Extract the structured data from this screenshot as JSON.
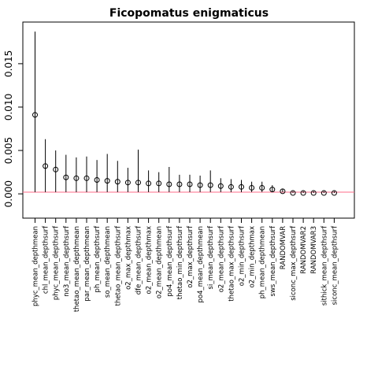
{
  "chart_data": {
    "type": "scatter",
    "title": "Ficopomatus enigmaticus",
    "xlabel": "",
    "ylabel": "",
    "ylim": [
      -0.0028,
      0.0198
    ],
    "yticks": [
      0.0,
      0.005,
      0.01,
      0.015
    ],
    "ytick_labels": [
      "0.000",
      "0.005",
      "0.010",
      "0.015"
    ],
    "reference_line": {
      "y": 0.0002,
      "color": "#ff6b8a"
    },
    "grid": false,
    "categories": [
      "phyc_mean_depthmean",
      "chl_mean_depthsurf",
      "phyc_mean_depthsurf",
      "no3_mean_depthsurf",
      "thetao_mean_depthmean",
      "par_mean_depthmean",
      "ph_mean_depthsurf",
      "so_mean_depthmean",
      "thetao_mean_depthsurf",
      "o2_max_depthmax",
      "dfe_mean_depthsurf",
      "o2_mean_depthmax",
      "o2_mean_depthmean",
      "po4_mean_depthsurf",
      "thetao_min_depthsurf",
      "o2_max_depthsurf",
      "po4_mean_depthmean",
      "si_mean_depthsurf",
      "o2_mean_depthsurf",
      "thetao_max_depthsurf",
      "o2_min_depthsurf",
      "o2_min_depthmax",
      "ph_mean_depthmean",
      "sws_mean_depthsurf",
      "RANDOMVAR",
      "siconc_max_depthsurf",
      "RANDOMVAR2",
      "RANDOMVAR3",
      "sithick_mean_depthsurf",
      "siconc_mean_depthsurf"
    ],
    "values": [
      0.0091,
      0.0032,
      0.0028,
      0.0019,
      0.0018,
      0.0018,
      0.0016,
      0.0015,
      0.0014,
      0.0013,
      0.0013,
      0.0012,
      0.0012,
      0.0011,
      0.0011,
      0.0011,
      0.001,
      0.001,
      0.0009,
      0.0008,
      0.0008,
      0.0007,
      0.0007,
      0.0005,
      0.0003,
      0.0001,
      0.0001,
      0.0001,
      0.0001,
      0.0001
    ],
    "upper": [
      0.0187,
      0.0063,
      0.005,
      0.0045,
      0.0042,
      0.0043,
      0.0039,
      0.0046,
      0.0038,
      0.003,
      0.0051,
      0.0027,
      0.0025,
      0.0031,
      0.0022,
      0.0022,
      0.0021,
      0.0027,
      0.0018,
      0.0017,
      0.0016,
      0.0014,
      0.0014,
      0.001,
      0.0006,
      0.0003,
      0.0003,
      0.0003,
      0.0003,
      0.0003
    ],
    "lower": [
      0.0002,
      0.0002,
      0.0002,
      0.0002,
      0.0002,
      0.0002,
      0.0002,
      0.0002,
      0.0002,
      0.0002,
      0.0002,
      0.0002,
      0.0002,
      0.0002,
      0.0002,
      0.0002,
      0.0002,
      0.0002,
      0.0002,
      0.0002,
      0.0002,
      0.0002,
      0.0002,
      0.0002,
      0.0002,
      0.0001,
      0.0001,
      0.0001,
      0.0001,
      0.0001
    ]
  }
}
